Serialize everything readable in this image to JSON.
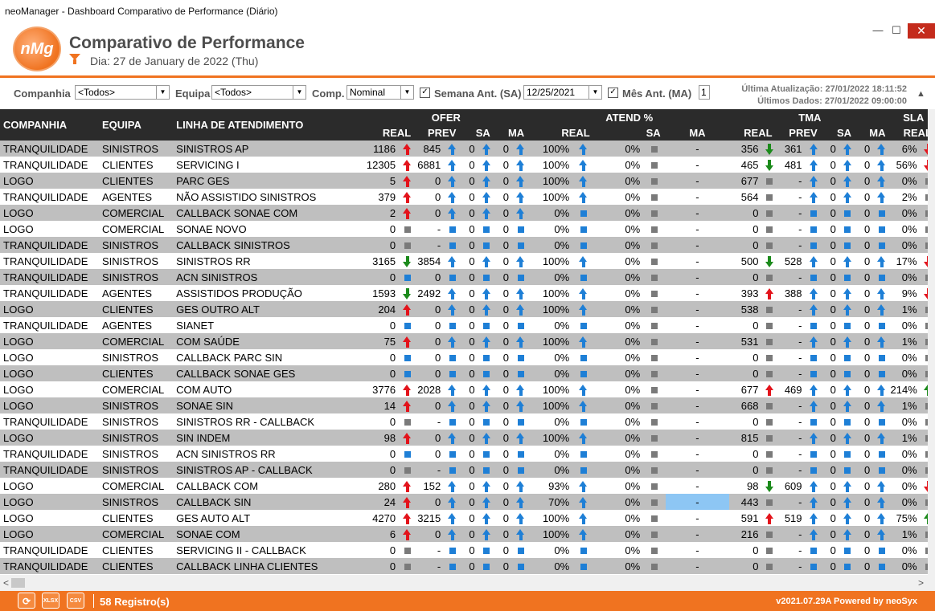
{
  "window": {
    "title": "neoManager - Dashboard Comparativo de Performance (Diário)",
    "minimize": "—",
    "maximize": "☐",
    "close": "✕"
  },
  "header": {
    "logo_text": "nMg",
    "title": "Comparativo de Performance",
    "day": "Dia: 27 de January de 2022 (Thu)"
  },
  "filters": {
    "companhia_label": "Companhia",
    "companhia_value": "<Todos>",
    "equipa_label": "Equipa",
    "equipa_value": "<Todos>",
    "comp_label": "Comp.",
    "comp_value": "Nominal",
    "semana_label": "Semana Ant. (SA)",
    "semana_checked": true,
    "semana_date": "12/25/2021",
    "mes_label": "Mês Ant. (MA)",
    "mes_checked": true,
    "mes_value": "1",
    "ultima_atualizacao": "Última Atualização: 27/01/2022 18:11:52",
    "ultimos_dados": "Últimos Dados: 27/01/2022 09:00:00"
  },
  "table": {
    "col_companhia": "COMPANHIA",
    "col_equipa": "EQUIPA",
    "col_linha": "LINHA DE ATENDIMENTO",
    "grp_ofer": "OFER",
    "grp_atend": "ATEND %",
    "grp_tma": "TMA",
    "grp_sla": "SLA",
    "sub_real": "REAL",
    "sub_prev": "PREV",
    "sub_sa": "SA",
    "sub_ma": "MA",
    "rows": [
      {
        "c": "TRANQUILIDADE",
        "e": "SINISTROS",
        "l": "SINISTROS AP",
        "or": "1186",
        "ori": "red-up",
        "op": "845",
        "opi": "blu-up",
        "os": "0",
        "osi": "blu-up",
        "om": "0",
        "omi": "blu-up",
        "ar": "100%",
        "ari": "blu-up",
        "as": "0%",
        "asi": "gray",
        "am": "-",
        "tr": "356",
        "tri": "grn-dn",
        "tp": "361",
        "tpi": "blu-up",
        "ts": "0",
        "tsi": "blu-up",
        "tm": "0",
        "tmi": "blu-up",
        "sr": "6%",
        "sri": "red-dn"
      },
      {
        "c": "TRANQUILIDADE",
        "e": "CLIENTES",
        "l": "SERVICING I",
        "or": "12305",
        "ori": "red-up",
        "op": "6881",
        "opi": "blu-up",
        "os": "0",
        "osi": "blu-up",
        "om": "0",
        "omi": "blu-up",
        "ar": "100%",
        "ari": "blu-up",
        "as": "0%",
        "asi": "gray",
        "am": "-",
        "tr": "465",
        "tri": "grn-dn",
        "tp": "481",
        "tpi": "blu-up",
        "ts": "0",
        "tsi": "blu-up",
        "tm": "0",
        "tmi": "blu-up",
        "sr": "56%",
        "sri": "red-dn"
      },
      {
        "c": "LOGO",
        "e": "CLIENTES",
        "l": "PARC GES",
        "or": "5",
        "ori": "red-up",
        "op": "0",
        "opi": "blu-up",
        "os": "0",
        "osi": "blu-up",
        "om": "0",
        "omi": "blu-up",
        "ar": "100%",
        "ari": "blu-up",
        "as": "0%",
        "asi": "gray",
        "am": "-",
        "tr": "677",
        "tri": "gray",
        "tp": "-",
        "tpi": "blu-up",
        "ts": "0",
        "tsi": "blu-up",
        "tm": "0",
        "tmi": "blu-up",
        "sr": "0%",
        "sri": "gray"
      },
      {
        "c": "TRANQUILIDADE",
        "e": "AGENTES",
        "l": "NÃO ASSISTIDO SINISTROS",
        "or": "379",
        "ori": "red-up",
        "op": "0",
        "opi": "blu-up",
        "os": "0",
        "osi": "blu-up",
        "om": "0",
        "omi": "blu-up",
        "ar": "100%",
        "ari": "blu-up",
        "as": "0%",
        "asi": "gray",
        "am": "-",
        "tr": "564",
        "tri": "gray",
        "tp": "-",
        "tpi": "blu-up",
        "ts": "0",
        "tsi": "blu-up",
        "tm": "0",
        "tmi": "blu-up",
        "sr": "2%",
        "sri": "gray"
      },
      {
        "c": "LOGO",
        "e": "COMERCIAL",
        "l": "CALLBACK SONAE COM",
        "or": "2",
        "ori": "red-up",
        "op": "0",
        "opi": "blu-up",
        "os": "0",
        "osi": "blu-up",
        "om": "0",
        "omi": "blu-up",
        "ar": "0%",
        "ari": "blu-sq",
        "as": "0%",
        "asi": "gray",
        "am": "-",
        "tr": "0",
        "tri": "gray",
        "tp": "-",
        "tpi": "blu-sq",
        "ts": "0",
        "tsi": "blu-sq",
        "tm": "0",
        "tmi": "blu-sq",
        "sr": "0%",
        "sri": "gray"
      },
      {
        "c": "LOGO",
        "e": "COMERCIAL",
        "l": "SONAE NOVO",
        "or": "0",
        "ori": "gray",
        "op": "-",
        "opi": "blu-sq",
        "os": "0",
        "osi": "blu-sq",
        "om": "0",
        "omi": "blu-sq",
        "ar": "0%",
        "ari": "blu-sq",
        "as": "0%",
        "asi": "gray",
        "am": "-",
        "tr": "0",
        "tri": "gray",
        "tp": "-",
        "tpi": "blu-sq",
        "ts": "0",
        "tsi": "blu-sq",
        "tm": "0",
        "tmi": "blu-sq",
        "sr": "0%",
        "sri": "gray"
      },
      {
        "c": "TRANQUILIDADE",
        "e": "SINISTROS",
        "l": "CALLBACK SINISTROS",
        "or": "0",
        "ori": "gray",
        "op": "-",
        "opi": "blu-sq",
        "os": "0",
        "osi": "blu-sq",
        "om": "0",
        "omi": "blu-sq",
        "ar": "0%",
        "ari": "blu-sq",
        "as": "0%",
        "asi": "gray",
        "am": "-",
        "tr": "0",
        "tri": "gray",
        "tp": "-",
        "tpi": "blu-sq",
        "ts": "0",
        "tsi": "blu-sq",
        "tm": "0",
        "tmi": "blu-sq",
        "sr": "0%",
        "sri": "gray"
      },
      {
        "c": "TRANQUILIDADE",
        "e": "SINISTROS",
        "l": "SINISTROS RR",
        "or": "3165",
        "ori": "grn-dn",
        "op": "3854",
        "opi": "blu-up",
        "os": "0",
        "osi": "blu-up",
        "om": "0",
        "omi": "blu-up",
        "ar": "100%",
        "ari": "blu-up",
        "as": "0%",
        "asi": "gray",
        "am": "-",
        "tr": "500",
        "tri": "grn-dn",
        "tp": "528",
        "tpi": "blu-up",
        "ts": "0",
        "tsi": "blu-up",
        "tm": "0",
        "tmi": "blu-up",
        "sr": "17%",
        "sri": "red-dn"
      },
      {
        "c": "TRANQUILIDADE",
        "e": "SINISTROS",
        "l": "ACN SINISTROS",
        "or": "0",
        "ori": "blu-sq",
        "op": "0",
        "opi": "blu-sq",
        "os": "0",
        "osi": "blu-sq",
        "om": "0",
        "omi": "blu-sq",
        "ar": "0%",
        "ari": "blu-sq",
        "as": "0%",
        "asi": "gray",
        "am": "-",
        "tr": "0",
        "tri": "gray",
        "tp": "-",
        "tpi": "blu-sq",
        "ts": "0",
        "tsi": "blu-sq",
        "tm": "0",
        "tmi": "blu-sq",
        "sr": "0%",
        "sri": "gray"
      },
      {
        "c": "TRANQUILIDADE",
        "e": "AGENTES",
        "l": "ASSISTIDOS PRODUÇÃO",
        "or": "1593",
        "ori": "grn-dn",
        "op": "2492",
        "opi": "blu-up",
        "os": "0",
        "osi": "blu-up",
        "om": "0",
        "omi": "blu-up",
        "ar": "100%",
        "ari": "blu-up",
        "as": "0%",
        "asi": "gray",
        "am": "-",
        "tr": "393",
        "tri": "red-up",
        "tp": "388",
        "tpi": "blu-up",
        "ts": "0",
        "tsi": "blu-up",
        "tm": "0",
        "tmi": "blu-up",
        "sr": "9%",
        "sri": "red-dn"
      },
      {
        "c": "LOGO",
        "e": "CLIENTES",
        "l": "GES OUTRO ALT",
        "or": "204",
        "ori": "red-up",
        "op": "0",
        "opi": "blu-up",
        "os": "0",
        "osi": "blu-up",
        "om": "0",
        "omi": "blu-up",
        "ar": "100%",
        "ari": "blu-up",
        "as": "0%",
        "asi": "gray",
        "am": "-",
        "tr": "538",
        "tri": "gray",
        "tp": "-",
        "tpi": "blu-up",
        "ts": "0",
        "tsi": "blu-up",
        "tm": "0",
        "tmi": "blu-up",
        "sr": "1%",
        "sri": "gray"
      },
      {
        "c": "TRANQUILIDADE",
        "e": "AGENTES",
        "l": "SIANET",
        "or": "0",
        "ori": "blu-sq",
        "op": "0",
        "opi": "blu-sq",
        "os": "0",
        "osi": "blu-sq",
        "om": "0",
        "omi": "blu-sq",
        "ar": "0%",
        "ari": "blu-sq",
        "as": "0%",
        "asi": "gray",
        "am": "-",
        "tr": "0",
        "tri": "gray",
        "tp": "-",
        "tpi": "blu-sq",
        "ts": "0",
        "tsi": "blu-sq",
        "tm": "0",
        "tmi": "blu-sq",
        "sr": "0%",
        "sri": "gray"
      },
      {
        "c": "LOGO",
        "e": "COMERCIAL",
        "l": "COM SAÚDE",
        "or": "75",
        "ori": "red-up",
        "op": "0",
        "opi": "blu-up",
        "os": "0",
        "osi": "blu-up",
        "om": "0",
        "omi": "blu-up",
        "ar": "100%",
        "ari": "blu-up",
        "as": "0%",
        "asi": "gray",
        "am": "-",
        "tr": "531",
        "tri": "gray",
        "tp": "-",
        "tpi": "blu-up",
        "ts": "0",
        "tsi": "blu-up",
        "tm": "0",
        "tmi": "blu-up",
        "sr": "1%",
        "sri": "gray"
      },
      {
        "c": "LOGO",
        "e": "SINISTROS",
        "l": "CALLBACK PARC SIN",
        "or": "0",
        "ori": "blu-sq",
        "op": "0",
        "opi": "blu-sq",
        "os": "0",
        "osi": "blu-sq",
        "om": "0",
        "omi": "blu-sq",
        "ar": "0%",
        "ari": "blu-sq",
        "as": "0%",
        "asi": "gray",
        "am": "-",
        "tr": "0",
        "tri": "gray",
        "tp": "-",
        "tpi": "blu-sq",
        "ts": "0",
        "tsi": "blu-sq",
        "tm": "0",
        "tmi": "blu-sq",
        "sr": "0%",
        "sri": "gray"
      },
      {
        "c": "LOGO",
        "e": "CLIENTES",
        "l": "CALLBACK SONAE GES",
        "or": "0",
        "ori": "blu-sq",
        "op": "0",
        "opi": "blu-sq",
        "os": "0",
        "osi": "blu-sq",
        "om": "0",
        "omi": "blu-sq",
        "ar": "0%",
        "ari": "blu-sq",
        "as": "0%",
        "asi": "gray",
        "am": "-",
        "tr": "0",
        "tri": "gray",
        "tp": "-",
        "tpi": "blu-sq",
        "ts": "0",
        "tsi": "blu-sq",
        "tm": "0",
        "tmi": "blu-sq",
        "sr": "0%",
        "sri": "gray"
      },
      {
        "c": "LOGO",
        "e": "COMERCIAL",
        "l": "COM AUTO",
        "or": "3776",
        "ori": "red-up",
        "op": "2028",
        "opi": "blu-up",
        "os": "0",
        "osi": "blu-up",
        "om": "0",
        "omi": "blu-up",
        "ar": "100%",
        "ari": "blu-up",
        "as": "0%",
        "asi": "gray",
        "am": "-",
        "tr": "677",
        "tri": "red-up",
        "tp": "469",
        "tpi": "blu-up",
        "ts": "0",
        "tsi": "blu-up",
        "tm": "0",
        "tmi": "blu-up",
        "sr": "214%",
        "sri": "grn-up"
      },
      {
        "c": "LOGO",
        "e": "SINISTROS",
        "l": "SONAE SIN",
        "or": "14",
        "ori": "red-up",
        "op": "0",
        "opi": "blu-up",
        "os": "0",
        "osi": "blu-up",
        "om": "0",
        "omi": "blu-up",
        "ar": "100%",
        "ari": "blu-up",
        "as": "0%",
        "asi": "gray",
        "am": "-",
        "tr": "668",
        "tri": "gray",
        "tp": "-",
        "tpi": "blu-up",
        "ts": "0",
        "tsi": "blu-up",
        "tm": "0",
        "tmi": "blu-up",
        "sr": "1%",
        "sri": "gray"
      },
      {
        "c": "TRANQUILIDADE",
        "e": "SINISTROS",
        "l": "SINISTROS RR - CALLBACK",
        "or": "0",
        "ori": "gray",
        "op": "-",
        "opi": "blu-sq",
        "os": "0",
        "osi": "blu-sq",
        "om": "0",
        "omi": "blu-sq",
        "ar": "0%",
        "ari": "blu-sq",
        "as": "0%",
        "asi": "gray",
        "am": "-",
        "tr": "0",
        "tri": "gray",
        "tp": "-",
        "tpi": "blu-sq",
        "ts": "0",
        "tsi": "blu-sq",
        "tm": "0",
        "tmi": "blu-sq",
        "sr": "0%",
        "sri": "gray"
      },
      {
        "c": "LOGO",
        "e": "SINISTROS",
        "l": "SIN INDEM",
        "or": "98",
        "ori": "red-up",
        "op": "0",
        "opi": "blu-up",
        "os": "0",
        "osi": "blu-up",
        "om": "0",
        "omi": "blu-up",
        "ar": "100%",
        "ari": "blu-up",
        "as": "0%",
        "asi": "gray",
        "am": "-",
        "tr": "815",
        "tri": "gray",
        "tp": "-",
        "tpi": "blu-up",
        "ts": "0",
        "tsi": "blu-up",
        "tm": "0",
        "tmi": "blu-up",
        "sr": "1%",
        "sri": "gray"
      },
      {
        "c": "TRANQUILIDADE",
        "e": "SINISTROS",
        "l": "ACN SINISTROS RR",
        "or": "0",
        "ori": "blu-sq",
        "op": "0",
        "opi": "blu-sq",
        "os": "0",
        "osi": "blu-sq",
        "om": "0",
        "omi": "blu-sq",
        "ar": "0%",
        "ari": "blu-sq",
        "as": "0%",
        "asi": "gray",
        "am": "-",
        "tr": "0",
        "tri": "gray",
        "tp": "-",
        "tpi": "blu-sq",
        "ts": "0",
        "tsi": "blu-sq",
        "tm": "0",
        "tmi": "blu-sq",
        "sr": "0%",
        "sri": "gray"
      },
      {
        "c": "TRANQUILIDADE",
        "e": "SINISTROS",
        "l": "SINISTROS AP - CALLBACK",
        "or": "0",
        "ori": "gray",
        "op": "-",
        "opi": "blu-sq",
        "os": "0",
        "osi": "blu-sq",
        "om": "0",
        "omi": "blu-sq",
        "ar": "0%",
        "ari": "blu-sq",
        "as": "0%",
        "asi": "gray",
        "am": "-",
        "tr": "0",
        "tri": "gray",
        "tp": "-",
        "tpi": "blu-sq",
        "ts": "0",
        "tsi": "blu-sq",
        "tm": "0",
        "tmi": "blu-sq",
        "sr": "0%",
        "sri": "gray"
      },
      {
        "c": "LOGO",
        "e": "COMERCIAL",
        "l": "CALLBACK COM",
        "or": "280",
        "ori": "red-up",
        "op": "152",
        "opi": "blu-up",
        "os": "0",
        "osi": "blu-up",
        "om": "0",
        "omi": "blu-up",
        "ar": "93%",
        "ari": "blu-up",
        "as": "0%",
        "asi": "gray",
        "am": "-",
        "tr": "98",
        "tri": "grn-dn",
        "tp": "609",
        "tpi": "blu-up",
        "ts": "0",
        "tsi": "blu-up",
        "tm": "0",
        "tmi": "blu-up",
        "sr": "0%",
        "sri": "red-dn"
      },
      {
        "c": "LOGO",
        "e": "SINISTROS",
        "l": "CALLBACK SIN",
        "or": "24",
        "ori": "red-up",
        "op": "0",
        "opi": "blu-up",
        "os": "0",
        "osi": "blu-up",
        "om": "0",
        "omi": "blu-up",
        "ar": "70%",
        "ari": "blu-up",
        "as": "0%",
        "asi": "gray",
        "am": "-",
        "tr": "443",
        "tri": "gray",
        "tp": "-",
        "tpi": "blu-up",
        "ts": "0",
        "tsi": "blu-up",
        "tm": "0",
        "tmi": "blu-up",
        "sr": "0%",
        "sri": "gray"
      },
      {
        "c": "LOGO",
        "e": "CLIENTES",
        "l": "GES AUTO ALT",
        "or": "4270",
        "ori": "red-up",
        "op": "3215",
        "opi": "blu-up",
        "os": "0",
        "osi": "blu-up",
        "om": "0",
        "omi": "blu-up",
        "ar": "100%",
        "ari": "blu-up",
        "as": "0%",
        "asi": "gray",
        "am": "-",
        "tr": "591",
        "tri": "red-up",
        "tp": "519",
        "tpi": "blu-up",
        "ts": "0",
        "tsi": "blu-up",
        "tm": "0",
        "tmi": "blu-up",
        "sr": "75%",
        "sri": "grn-up"
      },
      {
        "c": "LOGO",
        "e": "COMERCIAL",
        "l": "SONAE COM",
        "or": "6",
        "ori": "red-up",
        "op": "0",
        "opi": "blu-up",
        "os": "0",
        "osi": "blu-up",
        "om": "0",
        "omi": "blu-up",
        "ar": "100%",
        "ari": "blu-up",
        "as": "0%",
        "asi": "gray",
        "am": "-",
        "tr": "216",
        "tri": "gray",
        "tp": "-",
        "tpi": "blu-up",
        "ts": "0",
        "tsi": "blu-up",
        "tm": "0",
        "tmi": "blu-up",
        "sr": "1%",
        "sri": "gray"
      },
      {
        "c": "TRANQUILIDADE",
        "e": "CLIENTES",
        "l": "SERVICING II - CALLBACK",
        "or": "0",
        "ori": "gray",
        "op": "-",
        "opi": "blu-sq",
        "os": "0",
        "osi": "blu-sq",
        "om": "0",
        "omi": "blu-sq",
        "ar": "0%",
        "ari": "blu-sq",
        "as": "0%",
        "asi": "gray",
        "am": "-",
        "tr": "0",
        "tri": "gray",
        "tp": "-",
        "tpi": "blu-sq",
        "ts": "0",
        "tsi": "blu-sq",
        "tm": "0",
        "tmi": "blu-sq",
        "sr": "0%",
        "sri": "gray"
      },
      {
        "c": "TRANQUILIDADE",
        "e": "CLIENTES",
        "l": "CALLBACK LINHA CLIENTES",
        "or": "0",
        "ori": "gray",
        "op": "-",
        "opi": "blu-sq",
        "os": "0",
        "osi": "blu-sq",
        "om": "0",
        "omi": "blu-sq",
        "ar": "0%",
        "ari": "blu-sq",
        "as": "0%",
        "asi": "gray",
        "am": "-",
        "tr": "0",
        "tri": "gray",
        "tp": "-",
        "tpi": "blu-sq",
        "ts": "0",
        "tsi": "blu-sq",
        "tm": "0",
        "tmi": "blu-sq",
        "sr": "0%",
        "sri": "gray"
      }
    ]
  },
  "footer": {
    "btn_refresh": "⟳",
    "btn_xlsx": "XLSX",
    "btn_csv": "CSV",
    "records": "58 Registro(s)",
    "version": "v2021.07.29A Powered by neoSyx"
  }
}
